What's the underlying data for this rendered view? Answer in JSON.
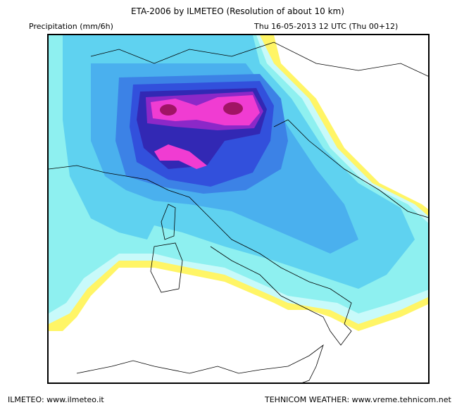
{
  "header": {
    "title": "ETA-2006 by ILMETEO (Resolution of about 10 km)",
    "variable": "Precipitation (mm/6h)",
    "valid_time": "Thu 16-05-2013 12 UTC (Thu 00+12)"
  },
  "footer": {
    "left": "ILMETEO: www.ilmeteo.it",
    "right": "TEHNICOM WEATHER: www.vreme.tehnicom.net"
  },
  "colors": {
    "light_yellow": "#fff566",
    "pale_cyan": "#c8fafa",
    "cyan": "#8ef0f0",
    "light_blue": "#5fd2f0",
    "blue": "#4ab0ee",
    "mid_blue": "#3c82e6",
    "deep_blue": "#3250dc",
    "indigo": "#3228b4",
    "purple": "#8c28c8",
    "magenta": "#f03cd2",
    "dark_magenta": "#a01464"
  }
}
